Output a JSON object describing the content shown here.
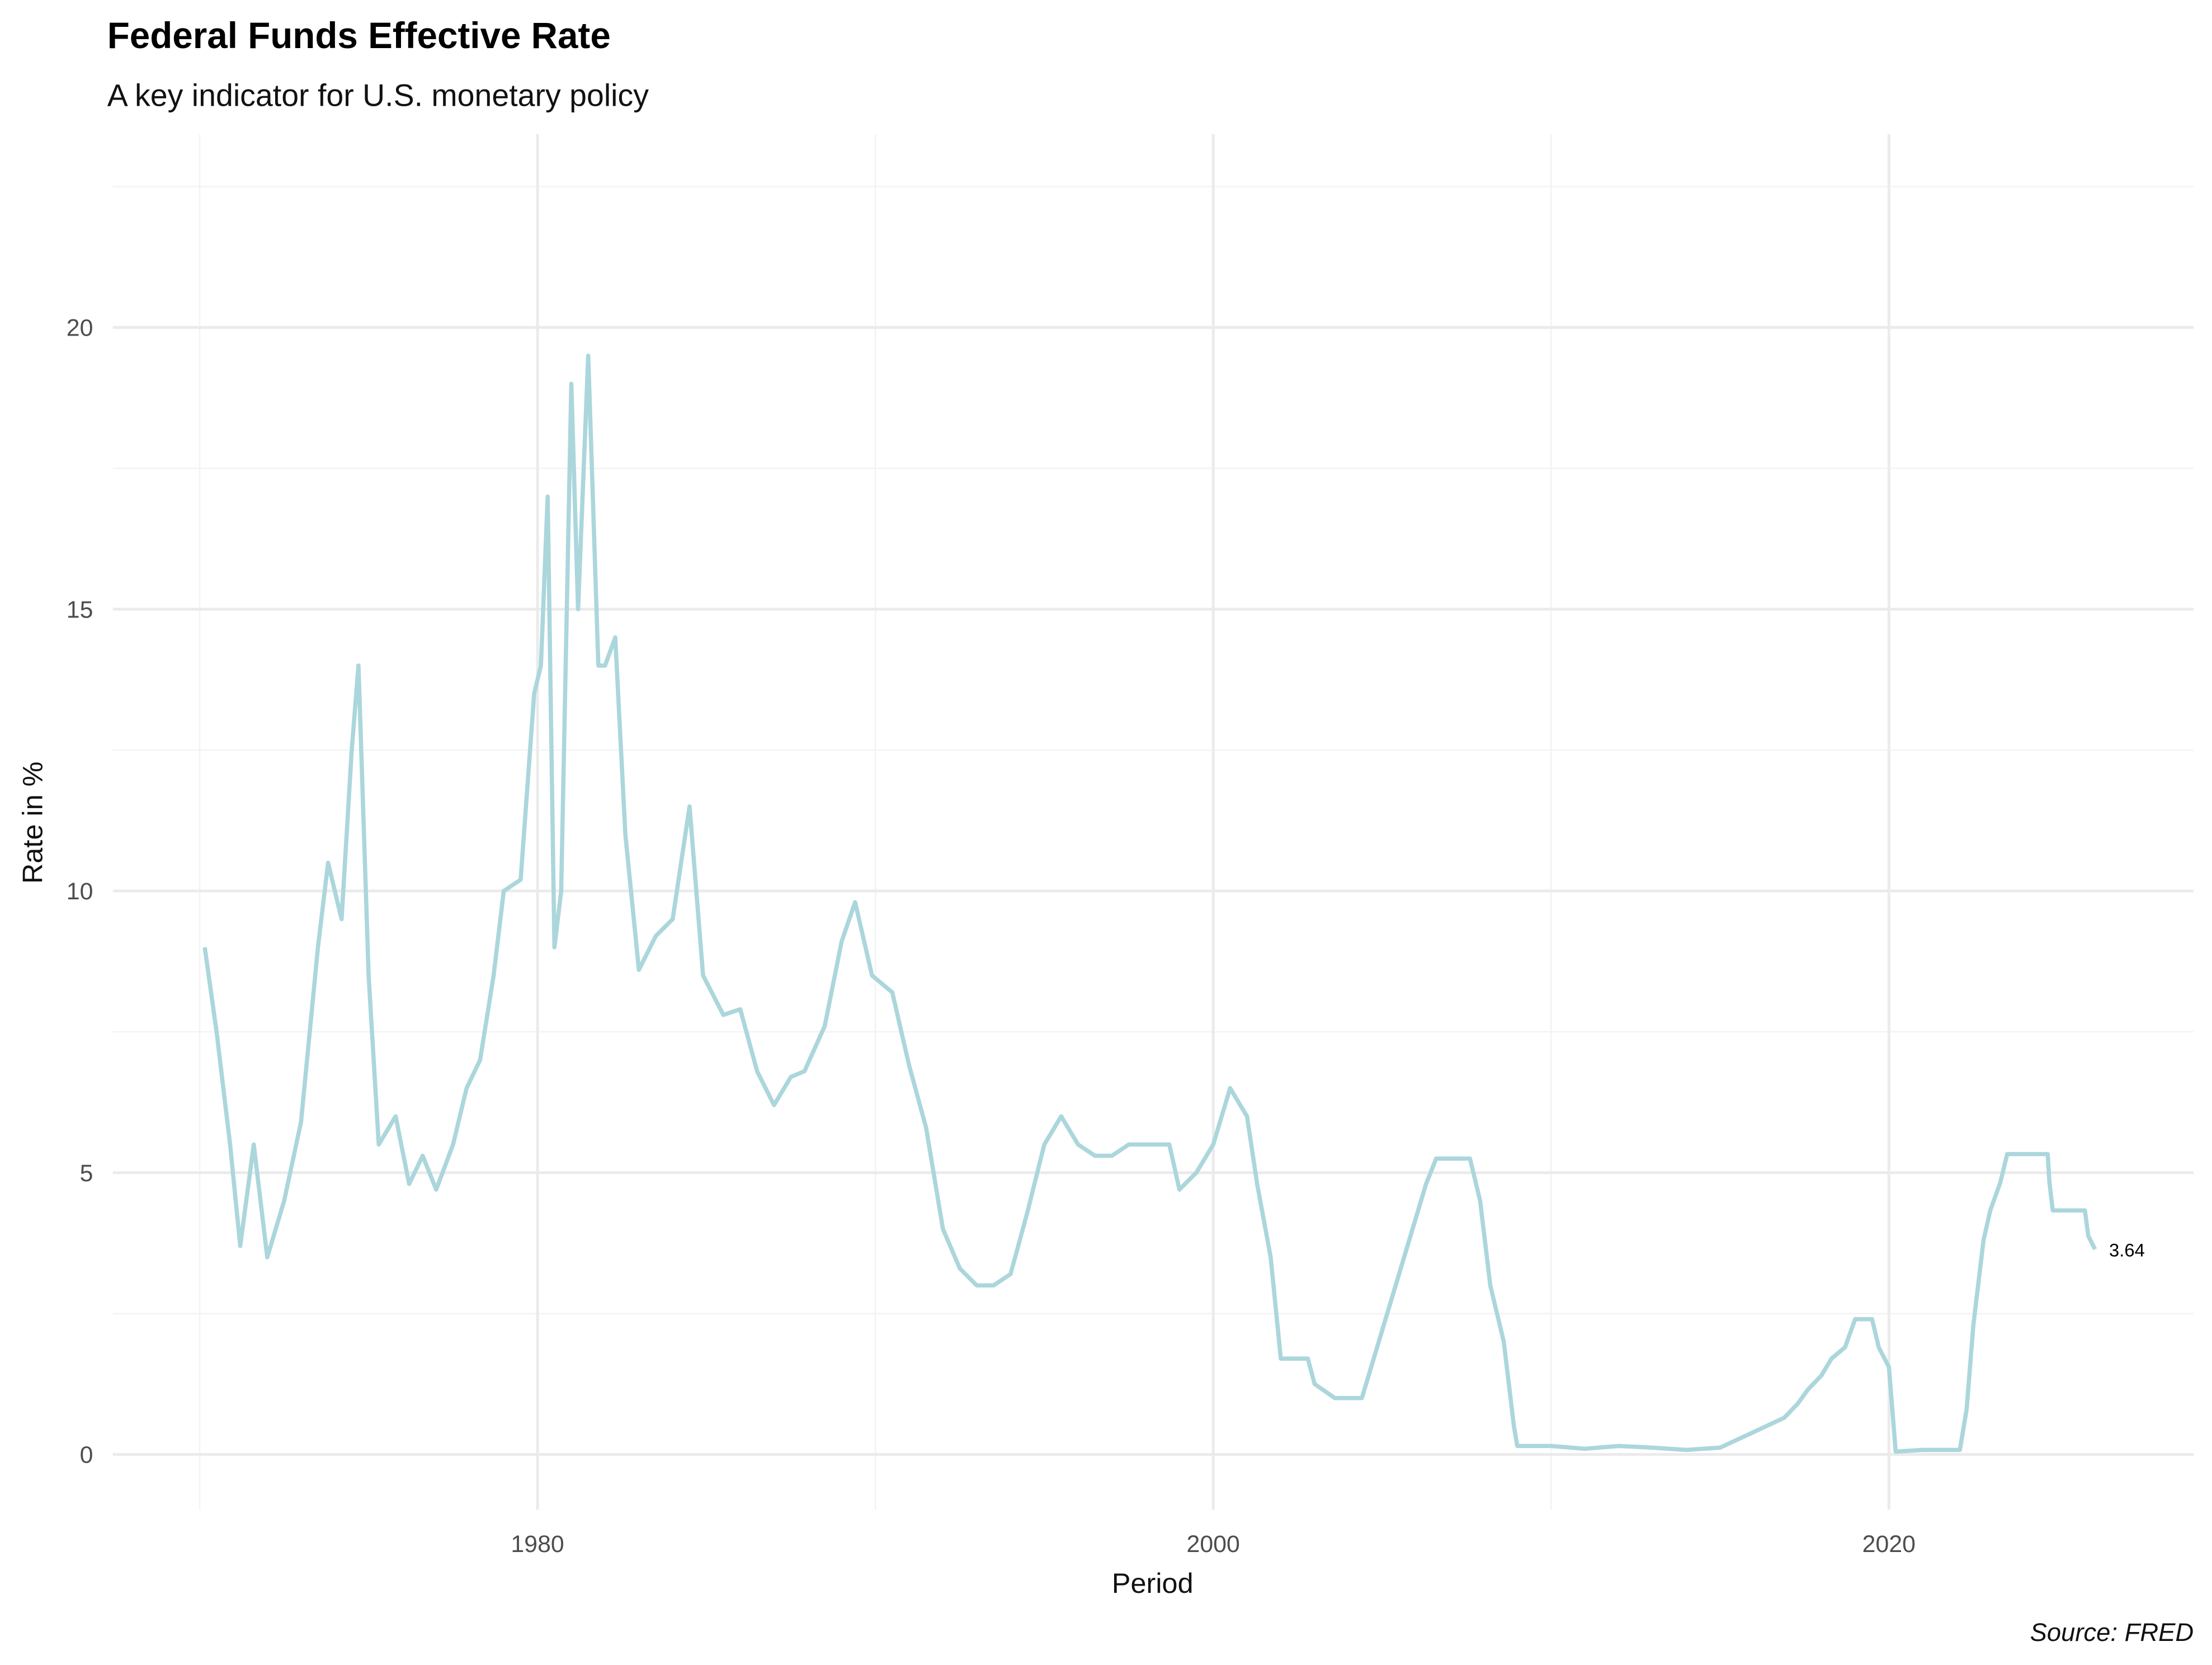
{
  "chart_data": {
    "type": "line",
    "title": "Federal Funds Effective Rate",
    "subtitle": "A key indicator for U.S. monetary policy",
    "x_label": "Period",
    "y_label": "Rate in %",
    "caption": "Source: FRED",
    "xlim": [
      1967.43,
      2029.02
    ],
    "ylim": [
      -0.98,
      23.43
    ],
    "xticks": [
      1980,
      2000,
      2020
    ],
    "yticks": [
      0,
      5,
      10,
      15,
      20
    ],
    "x_minor_ticks": [
      1970,
      1990,
      2010
    ],
    "y_minor_ticks": [
      2.5,
      7.5,
      12.5,
      17.5,
      22.5
    ],
    "grid": true,
    "series": [
      {
        "name": "Federal Funds Effective Rate",
        "color": "#abd6dc",
        "x": [
          1970.15,
          1970.5,
          1970.9,
          1971.2,
          1971.6,
          1972.0,
          1972.5,
          1973.0,
          1973.5,
          1973.8,
          1974.2,
          1974.5,
          1974.7,
          1975.0,
          1975.3,
          1975.8,
          1976.2,
          1976.6,
          1977.0,
          1977.5,
          1977.9,
          1978.3,
          1978.7,
          1979.0,
          1979.5,
          1979.9,
          1980.1,
          1980.3,
          1980.5,
          1980.7,
          1981.0,
          1981.2,
          1981.5,
          1981.8,
          1982.0,
          1982.3,
          1982.6,
          1983.0,
          1983.5,
          1984.0,
          1984.5,
          1984.9,
          1985.5,
          1986.0,
          1986.5,
          1987.0,
          1987.5,
          1987.9,
          1988.5,
          1989.0,
          1989.4,
          1989.9,
          1990.5,
          1991.0,
          1991.5,
          1992.0,
          1992.5,
          1993.0,
          1993.5,
          1994.0,
          1994.5,
          1995.0,
          1995.5,
          1996.0,
          1996.5,
          1997.0,
          1997.5,
          1998.0,
          1998.7,
          1999.0,
          1999.5,
          2000.0,
          2000.5,
          2001.0,
          2001.3,
          2001.7,
          2002.0,
          2002.8,
          2003.0,
          2003.6,
          2004.4,
          2004.8,
          2005.3,
          2005.8,
          2006.3,
          2006.6,
          2007.6,
          2007.9,
          2008.2,
          2008.6,
          2008.9,
          2009.0,
          2010.0,
          2011.0,
          2012.0,
          2013.0,
          2014.0,
          2015.0,
          2015.9,
          2016.9,
          2017.3,
          2017.6,
          2018.0,
          2018.3,
          2018.7,
          2019.0,
          2019.5,
          2019.7,
          2020.0,
          2020.2,
          2021.0,
          2022.1,
          2022.3,
          2022.5,
          2022.8,
          2023.0,
          2023.3,
          2023.5,
          2024.7,
          2024.75,
          2024.85,
          2025.8,
          2025.9,
          2026.1
        ],
        "values": [
          9.0,
          7.5,
          5.5,
          3.7,
          5.5,
          3.5,
          4.5,
          5.9,
          9.0,
          10.5,
          9.5,
          12.5,
          14.0,
          8.5,
          5.5,
          6.0,
          4.8,
          5.3,
          4.7,
          5.5,
          6.5,
          7.0,
          8.5,
          10.0,
          10.2,
          13.5,
          14.0,
          17.0,
          9.0,
          10.0,
          19.0,
          15.0,
          19.5,
          14.0,
          14.0,
          14.5,
          11.0,
          8.6,
          9.2,
          9.5,
          11.5,
          8.5,
          7.8,
          7.9,
          6.8,
          6.2,
          6.7,
          6.8,
          7.6,
          9.1,
          9.8,
          8.5,
          8.2,
          6.9,
          5.8,
          4.0,
          3.3,
          3.0,
          3.0,
          3.2,
          4.3,
          5.5,
          6.0,
          5.5,
          5.3,
          5.3,
          5.5,
          5.5,
          5.5,
          4.7,
          5.0,
          5.5,
          6.5,
          6.0,
          4.8,
          3.5,
          1.7,
          1.7,
          1.25,
          1.0,
          1.0,
          1.8,
          2.8,
          3.8,
          4.8,
          5.25,
          5.25,
          4.5,
          3.0,
          2.0,
          0.5,
          0.15,
          0.15,
          0.1,
          0.15,
          0.12,
          0.08,
          0.12,
          0.37,
          0.65,
          0.9,
          1.15,
          1.4,
          1.7,
          1.9,
          2.4,
          2.4,
          1.9,
          1.55,
          0.05,
          0.08,
          0.08,
          0.8,
          2.3,
          3.8,
          4.33,
          4.83,
          5.33,
          5.33,
          4.83,
          4.33,
          4.33,
          3.88,
          3.64
        ]
      }
    ]
  }
}
